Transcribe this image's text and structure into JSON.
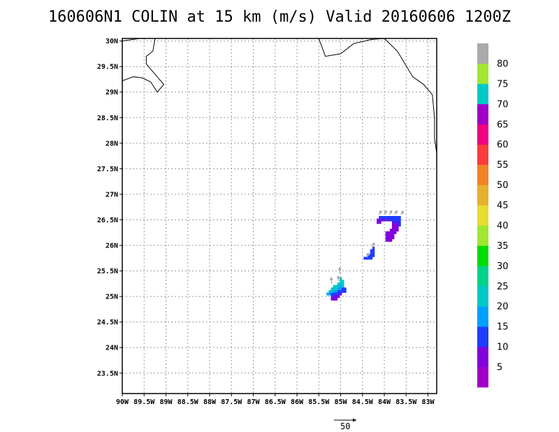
{
  "title": "160606N1  COLIN at 15 km (m/s) Valid 20160606  1200Z",
  "map": {
    "lon_range": [
      -90,
      -82.8
    ],
    "lat_range": [
      23.1,
      30.05
    ],
    "lon_ticks": [
      -90,
      -89.5,
      -89,
      -88.5,
      -88,
      -87.5,
      -87,
      -86.5,
      -86,
      -85.5,
      -85,
      -84.5,
      -84,
      -83.5,
      -83
    ],
    "lon_tick_labels": [
      "90W",
      "89.5W",
      "89W",
      "88.5W",
      "88W",
      "87.5W",
      "87W",
      "86.5W",
      "86W",
      "85.5W",
      "85W",
      "84.5W",
      "84W",
      "83.5W",
      "83W"
    ],
    "lat_ticks": [
      30,
      29.5,
      29,
      28.5,
      28,
      27.5,
      27,
      26.5,
      26,
      25.5,
      25,
      24.5,
      24,
      23.5
    ],
    "lat_tick_labels": [
      "30N",
      "29.5N",
      "29N",
      "28.5N",
      "28N",
      "27.5N",
      "27N",
      "26.5N",
      "26N",
      "25.5N",
      "25N",
      "24.5N",
      "24N",
      "23.5N"
    ],
    "grid": "dotted",
    "coastlines": [
      [
        [
          -90,
          30.0
        ],
        [
          -89.6,
          30.05
        ]
      ],
      [
        [
          -89.25,
          30.05
        ],
        [
          -89.3,
          29.8
        ],
        [
          -89.45,
          29.7
        ],
        [
          -89.45,
          29.55
        ],
        [
          -89.25,
          29.35
        ],
        [
          -89.05,
          29.15
        ],
        [
          -89.2,
          29.0
        ],
        [
          -89.35,
          29.2
        ],
        [
          -89.55,
          29.28
        ],
        [
          -89.75,
          29.3
        ],
        [
          -90,
          29.22
        ]
      ],
      [
        [
          -85.5,
          30.05
        ],
        [
          -85.35,
          29.7
        ],
        [
          -85.0,
          29.75
        ],
        [
          -84.7,
          29.95
        ],
        [
          -84.3,
          30.03
        ],
        [
          -84.0,
          30.05
        ],
        [
          -83.7,
          29.8
        ],
        [
          -83.35,
          29.3
        ],
        [
          -83.1,
          29.15
        ],
        [
          -82.9,
          28.95
        ],
        [
          -82.85,
          28.5
        ],
        [
          -82.85,
          28.1
        ],
        [
          -82.8,
          27.8
        ]
      ]
    ]
  },
  "chart_data": {
    "type": "heatmap",
    "variable": "wind speed at 15 km (m/s)",
    "cell_size_deg": 0.05,
    "cells": [
      {
        "lon": -84.1,
        "lat": 26.55,
        "v": 10
      },
      {
        "lon": -84.05,
        "lat": 26.55,
        "v": 10
      },
      {
        "lon": -84.0,
        "lat": 26.55,
        "v": 10
      },
      {
        "lon": -83.95,
        "lat": 26.55,
        "v": 10
      },
      {
        "lon": -83.9,
        "lat": 26.55,
        "v": 10
      },
      {
        "lon": -83.85,
        "lat": 26.55,
        "v": 10
      },
      {
        "lon": -83.8,
        "lat": 26.55,
        "v": 10
      },
      {
        "lon": -83.75,
        "lat": 26.55,
        "v": 10
      },
      {
        "lon": -83.7,
        "lat": 26.55,
        "v": 10
      },
      {
        "lon": -83.65,
        "lat": 26.55,
        "v": 10
      },
      {
        "lon": -84.15,
        "lat": 26.5,
        "v": 5
      },
      {
        "lon": -84.1,
        "lat": 26.5,
        "v": 10
      },
      {
        "lon": -84.05,
        "lat": 26.5,
        "v": 5
      },
      {
        "lon": -84.0,
        "lat": 26.5,
        "v": 5
      },
      {
        "lon": -83.95,
        "lat": 26.5,
        "v": 10
      },
      {
        "lon": -83.9,
        "lat": 26.5,
        "v": 5
      },
      {
        "lon": -83.85,
        "lat": 26.5,
        "v": 10
      },
      {
        "lon": -83.8,
        "lat": 26.5,
        "v": 10
      },
      {
        "lon": -83.75,
        "lat": 26.5,
        "v": 10
      },
      {
        "lon": -83.7,
        "lat": 26.5,
        "v": 10
      },
      {
        "lon": -83.65,
        "lat": 26.5,
        "v": 10
      },
      {
        "lon": -84.15,
        "lat": 26.45,
        "v": 5
      },
      {
        "lon": -84.1,
        "lat": 26.45,
        "v": 5
      },
      {
        "lon": -83.8,
        "lat": 26.45,
        "v": 5
      },
      {
        "lon": -83.75,
        "lat": 26.45,
        "v": 10
      },
      {
        "lon": -83.7,
        "lat": 26.45,
        "v": 5
      },
      {
        "lon": -83.65,
        "lat": 26.45,
        "v": 10
      },
      {
        "lon": -83.8,
        "lat": 26.4,
        "v": 5
      },
      {
        "lon": -83.75,
        "lat": 26.4,
        "v": 5
      },
      {
        "lon": -83.7,
        "lat": 26.4,
        "v": 5
      },
      {
        "lon": -83.65,
        "lat": 26.4,
        "v": 10
      },
      {
        "lon": -83.8,
        "lat": 26.35,
        "v": 5
      },
      {
        "lon": -83.75,
        "lat": 26.35,
        "v": 5
      },
      {
        "lon": -83.7,
        "lat": 26.35,
        "v": 5
      },
      {
        "lon": -83.85,
        "lat": 26.3,
        "v": 5
      },
      {
        "lon": -83.8,
        "lat": 26.3,
        "v": 5
      },
      {
        "lon": -83.75,
        "lat": 26.3,
        "v": 5
      },
      {
        "lon": -83.7,
        "lat": 26.3,
        "v": 5
      },
      {
        "lon": -83.95,
        "lat": 26.25,
        "v": 5
      },
      {
        "lon": -83.9,
        "lat": 26.25,
        "v": 5
      },
      {
        "lon": -83.85,
        "lat": 26.25,
        "v": 5
      },
      {
        "lon": -83.8,
        "lat": 26.25,
        "v": 5
      },
      {
        "lon": -83.75,
        "lat": 26.25,
        "v": 5
      },
      {
        "lon": -83.95,
        "lat": 26.2,
        "v": 5
      },
      {
        "lon": -83.9,
        "lat": 26.2,
        "v": 5
      },
      {
        "lon": -83.85,
        "lat": 26.2,
        "v": 5
      },
      {
        "lon": -83.8,
        "lat": 26.2,
        "v": 5
      },
      {
        "lon": -83.95,
        "lat": 26.15,
        "v": 5
      },
      {
        "lon": -83.9,
        "lat": 26.15,
        "v": 5
      },
      {
        "lon": -83.85,
        "lat": 26.15,
        "v": 5
      },
      {
        "lon": -83.8,
        "lat": 26.15,
        "v": 5
      },
      {
        "lon": -83.95,
        "lat": 26.1,
        "v": 5
      },
      {
        "lon": -83.9,
        "lat": 26.1,
        "v": 5
      },
      {
        "lon": -83.85,
        "lat": 26.1,
        "v": 5
      },
      {
        "lon": -84.25,
        "lat": 25.95,
        "v": 10
      },
      {
        "lon": -84.3,
        "lat": 25.9,
        "v": 10
      },
      {
        "lon": -84.25,
        "lat": 25.9,
        "v": 10
      },
      {
        "lon": -84.3,
        "lat": 25.85,
        "v": 10
      },
      {
        "lon": -84.25,
        "lat": 25.85,
        "v": 10
      },
      {
        "lon": -84.35,
        "lat": 25.8,
        "v": 10
      },
      {
        "lon": -84.3,
        "lat": 25.8,
        "v": 10
      },
      {
        "lon": -84.25,
        "lat": 25.8,
        "v": 10
      },
      {
        "lon": -84.45,
        "lat": 25.75,
        "v": 10
      },
      {
        "lon": -84.4,
        "lat": 25.75,
        "v": 10
      },
      {
        "lon": -84.35,
        "lat": 25.75,
        "v": 10
      },
      {
        "lon": -84.3,
        "lat": 25.75,
        "v": 10
      },
      {
        "lon": -85.0,
        "lat": 25.35,
        "v": 20
      },
      {
        "lon": -85.0,
        "lat": 25.3,
        "v": 20
      },
      {
        "lon": -84.95,
        "lat": 25.3,
        "v": 20
      },
      {
        "lon": -85.05,
        "lat": 25.25,
        "v": 20
      },
      {
        "lon": -85.0,
        "lat": 25.25,
        "v": 20
      },
      {
        "lon": -84.95,
        "lat": 25.25,
        "v": 20
      },
      {
        "lon": -85.15,
        "lat": 25.2,
        "v": 20
      },
      {
        "lon": -85.1,
        "lat": 25.2,
        "v": 20
      },
      {
        "lon": -85.05,
        "lat": 25.2,
        "v": 20
      },
      {
        "lon": -85.0,
        "lat": 25.2,
        "v": 15
      },
      {
        "lon": -84.95,
        "lat": 25.2,
        "v": 20
      },
      {
        "lon": -85.2,
        "lat": 25.15,
        "v": 20
      },
      {
        "lon": -85.15,
        "lat": 25.15,
        "v": 20
      },
      {
        "lon": -85.1,
        "lat": 25.15,
        "v": 20
      },
      {
        "lon": -85.05,
        "lat": 25.15,
        "v": 15
      },
      {
        "lon": -85.0,
        "lat": 25.15,
        "v": 15
      },
      {
        "lon": -84.95,
        "lat": 25.15,
        "v": 10
      },
      {
        "lon": -84.9,
        "lat": 25.15,
        "v": 10
      },
      {
        "lon": -85.25,
        "lat": 25.1,
        "v": 20
      },
      {
        "lon": -85.2,
        "lat": 25.1,
        "v": 20
      },
      {
        "lon": -85.15,
        "lat": 25.1,
        "v": 15
      },
      {
        "lon": -85.1,
        "lat": 25.1,
        "v": 15
      },
      {
        "lon": -85.05,
        "lat": 25.1,
        "v": 10
      },
      {
        "lon": -85.0,
        "lat": 25.1,
        "v": 10
      },
      {
        "lon": -84.95,
        "lat": 25.1,
        "v": 10
      },
      {
        "lon": -84.9,
        "lat": 25.1,
        "v": 10
      },
      {
        "lon": -85.3,
        "lat": 25.05,
        "v": 15
      },
      {
        "lon": -85.25,
        "lat": 25.05,
        "v": 15
      },
      {
        "lon": -85.2,
        "lat": 25.05,
        "v": 10
      },
      {
        "lon": -85.15,
        "lat": 25.05,
        "v": 10
      },
      {
        "lon": -85.1,
        "lat": 25.05,
        "v": 10
      },
      {
        "lon": -85.05,
        "lat": 25.05,
        "v": 10
      },
      {
        "lon": -85.0,
        "lat": 25.05,
        "v": 5
      },
      {
        "lon": -85.2,
        "lat": 25.0,
        "v": 10
      },
      {
        "lon": -85.15,
        "lat": 25.0,
        "v": 5
      },
      {
        "lon": -85.1,
        "lat": 25.0,
        "v": 5
      },
      {
        "lon": -85.05,
        "lat": 25.0,
        "v": 5
      },
      {
        "lon": -85.2,
        "lat": 24.95,
        "v": 5
      },
      {
        "lon": -85.15,
        "lat": 24.95,
        "v": 5
      },
      {
        "lon": -85.1,
        "lat": 24.95,
        "v": 5
      }
    ],
    "vectors": [
      {
        "lon": -84.12,
        "lat": 26.6,
        "du": 0.05,
        "dv": 0.08
      },
      {
        "lon": -84.0,
        "lat": 26.6,
        "du": 0.05,
        "dv": 0.08
      },
      {
        "lon": -83.88,
        "lat": 26.6,
        "du": 0.05,
        "dv": 0.08
      },
      {
        "lon": -83.76,
        "lat": 26.6,
        "du": 0.05,
        "dv": 0.08
      },
      {
        "lon": -83.62,
        "lat": 26.6,
        "du": 0.06,
        "dv": 0.07
      },
      {
        "lon": -84.28,
        "lat": 25.95,
        "du": 0.05,
        "dv": 0.1
      },
      {
        "lon": -84.4,
        "lat": 25.78,
        "du": 0.04,
        "dv": 0.07
      },
      {
        "lon": -85.02,
        "lat": 25.45,
        "du": 0.0,
        "dv": 0.12
      },
      {
        "lon": -85.2,
        "lat": 25.25,
        "du": -0.02,
        "dv": 0.12
      },
      {
        "lon": -85.05,
        "lat": 25.3,
        "du": 0.0,
        "dv": 0.1
      }
    ],
    "colorbar": {
      "levels": [
        5,
        10,
        15,
        20,
        25,
        30,
        35,
        40,
        45,
        50,
        55,
        60,
        65,
        70,
        75,
        80
      ],
      "labels": [
        "5",
        "10",
        "15",
        "20",
        "25",
        "30",
        "35",
        "40",
        "45",
        "50",
        "55",
        "60",
        "65",
        "70",
        "75",
        "80"
      ],
      "colors": [
        "#a000c8",
        "#8200dc",
        "#1e3cff",
        "#00a0ff",
        "#00c8c8",
        "#00d28c",
        "#00dc00",
        "#a0e632",
        "#e6dc32",
        "#e6af2d",
        "#f08228",
        "#fa3c3c",
        "#f00082",
        "#a000c8",
        "#00c8c8",
        "#a0e632",
        "#aaaaaa"
      ]
    },
    "reference_vector": {
      "label": "50"
    }
  }
}
